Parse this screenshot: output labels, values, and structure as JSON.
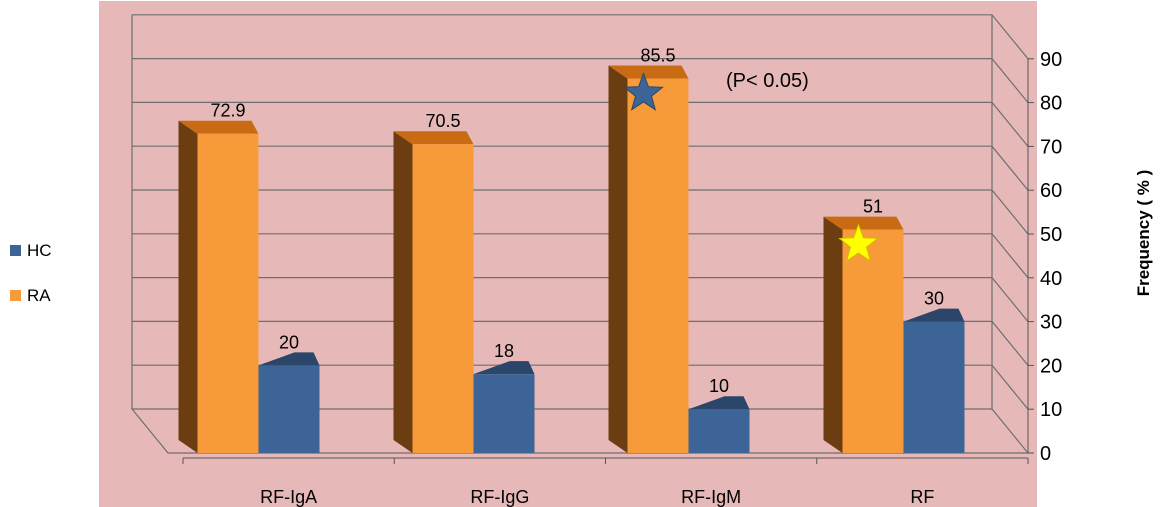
{
  "chart_data": {
    "type": "bar",
    "title": "",
    "xlabel": "",
    "ylabel": "Frequency ( % )",
    "ylim": [
      0,
      90
    ],
    "yticks": [
      0,
      10,
      20,
      30,
      40,
      50,
      60,
      70,
      80,
      90
    ],
    "grid": true,
    "legend_position": "left",
    "categories": [
      "RF-IgA",
      "RF-IgG",
      "RF-IgM",
      "RF"
    ],
    "series": [
      {
        "name": "RA",
        "values": [
          72.9,
          70.5,
          85.5,
          51
        ],
        "labels": [
          "72.9",
          "70.5",
          "85.5",
          "51"
        ],
        "color": "#f79a3a"
      },
      {
        "name": "HC",
        "values": [
          20,
          18,
          10,
          30
        ],
        "labels": [
          "20",
          "18",
          "10",
          "30"
        ],
        "color": "#3c6496"
      }
    ],
    "annotations": [
      {
        "text": "(P< 0.05)"
      }
    ],
    "markers": [
      {
        "series": "RA",
        "category": "RF-IgM",
        "shape": "star",
        "color": "#3c6496"
      },
      {
        "series": "RA",
        "category": "RF",
        "shape": "star",
        "color": "#ffff00"
      }
    ],
    "plot_background": "#e6b9b8"
  }
}
